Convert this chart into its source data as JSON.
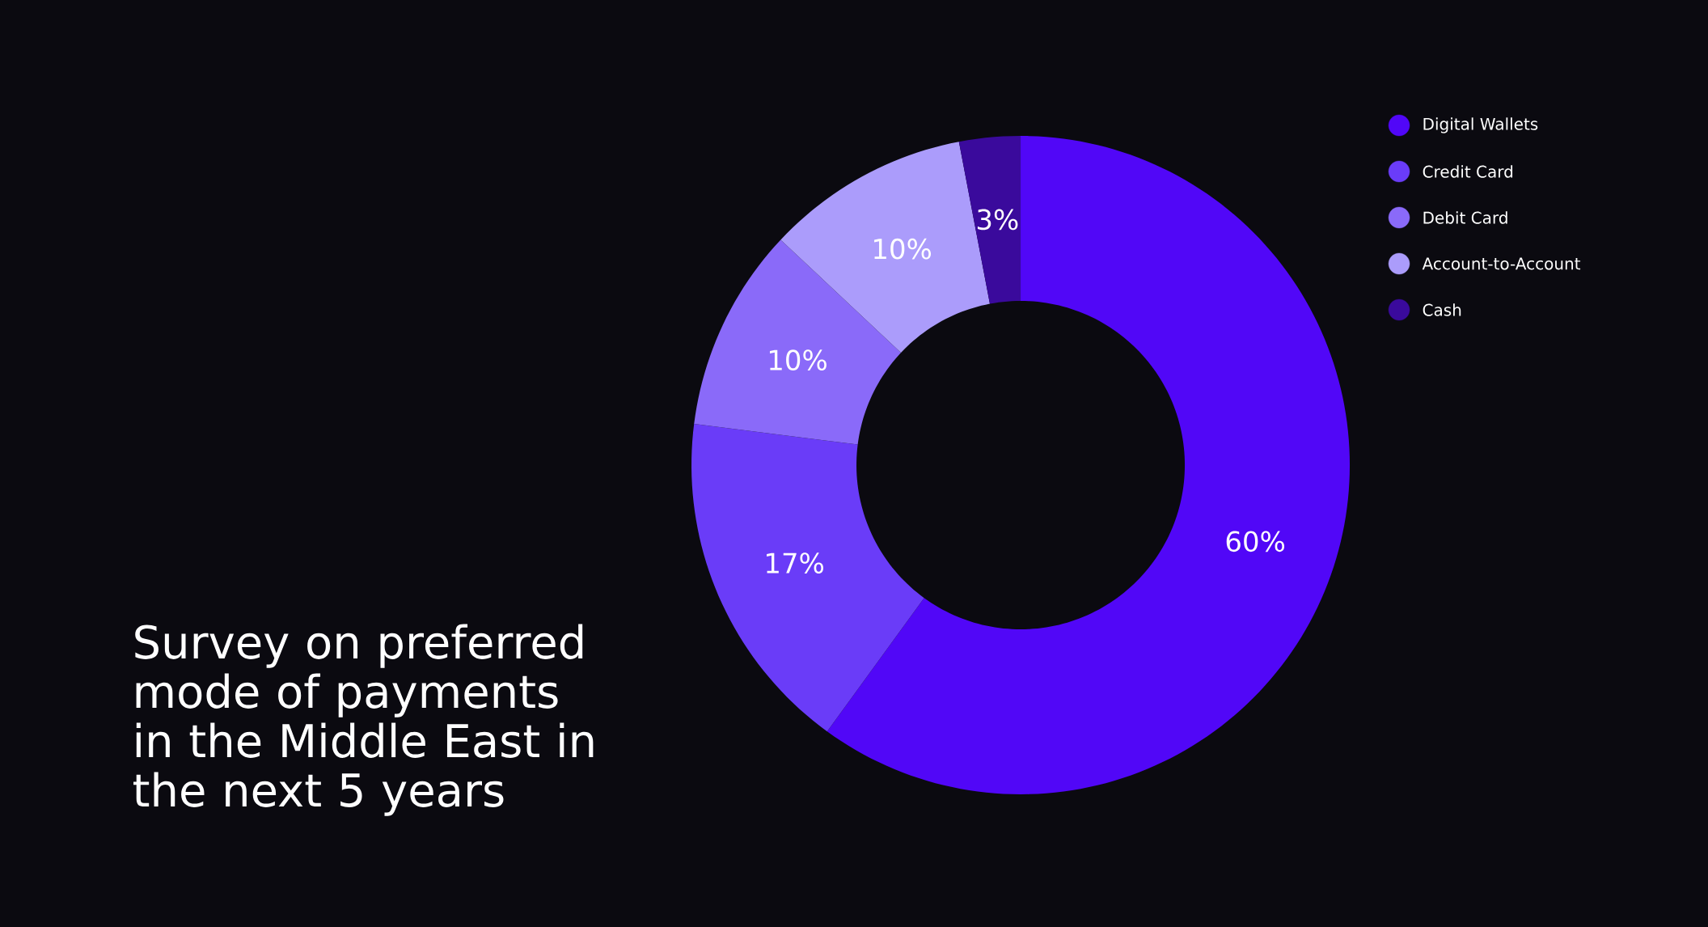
{
  "chart_data": {
    "type": "donut",
    "title": "Survey on preferred mode of payments in the Middle East in the next 5 years",
    "categories": [
      "Digital Wallets",
      "Credit Card",
      "Debit Card",
      "Account-to-Account",
      "Cash"
    ],
    "values": [
      60,
      17,
      10,
      10,
      3
    ],
    "colors": [
      "#5107f7",
      "#6a3cf8",
      "#8a6af9",
      "#ab9cfb",
      "#3a0a9c"
    ],
    "value_labels": [
      "60%",
      "17%",
      "10%",
      "10%",
      "3%"
    ],
    "legend": "top right"
  }
}
